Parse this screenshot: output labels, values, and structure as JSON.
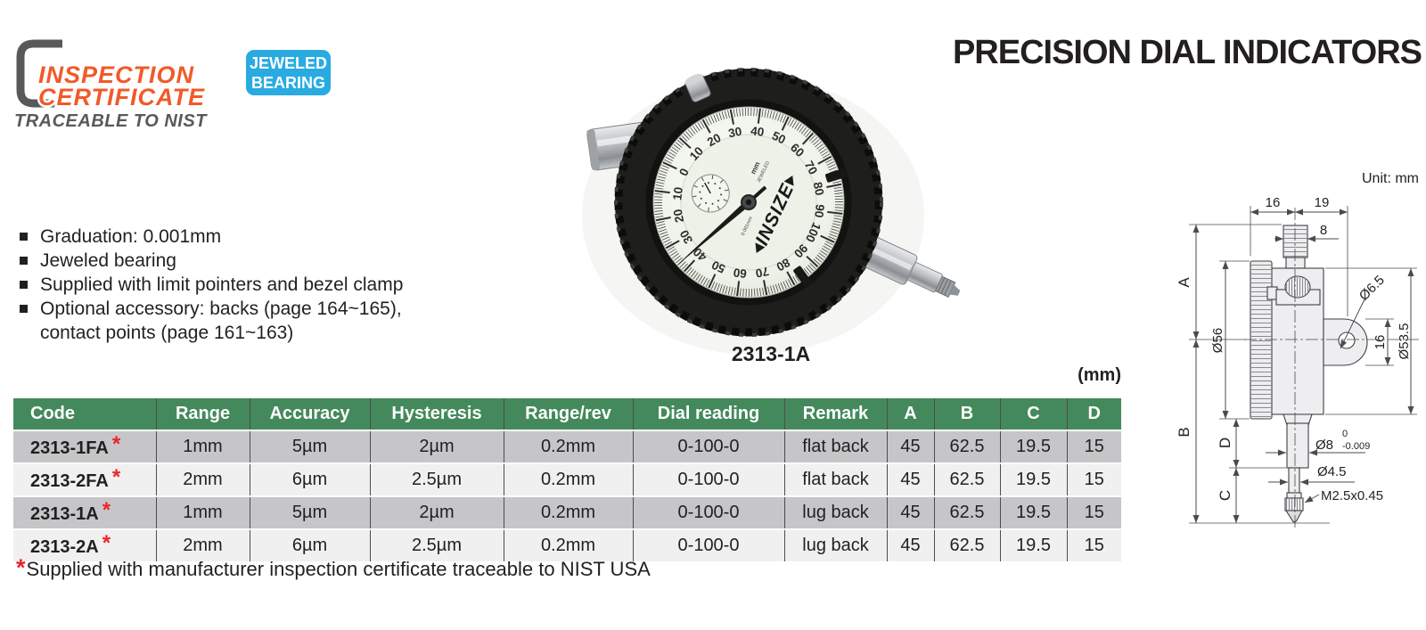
{
  "branding": {
    "inspection_line1": "INSPECTION",
    "inspection_line2": "CERTIFICATE",
    "traceable": "TRACEABLE TO NIST",
    "badge_line1": "JEWELED",
    "badge_line2": "BEARING"
  },
  "header": {
    "title": "PRECISION DIAL INDICATORS"
  },
  "features": {
    "items": [
      "Graduation: 0.001mm",
      "Jeweled bearing",
      "Supplied with limit pointers and bezel clamp",
      "Optional accessory: backs (page 164~165), contact points (page 161~163)"
    ]
  },
  "photo": {
    "caption": "2313-1A",
    "brand": "INSIZE",
    "dial_unit": "mm",
    "dial_sub": "JEWELED",
    "dial_grad": "0.001mm",
    "dial_numbers": [
      "0",
      "10",
      "20",
      "30",
      "40",
      "50",
      "60",
      "70",
      "80",
      "90",
      "100",
      "90",
      "80",
      "70",
      "60",
      "50",
      "40",
      "30",
      "20",
      "10"
    ]
  },
  "drawing": {
    "unit": "Unit: mm",
    "dims": {
      "top_left": "16",
      "top_right": "19",
      "stem_top": "8",
      "a": "A",
      "b": "B",
      "c": "C",
      "d": "D",
      "dial_od": "Ø56",
      "lug_hole": "Ø6.5",
      "lug_width": "16",
      "body_od": "Ø53.5",
      "stem": "Ø8",
      "stem_tol_top": "0",
      "stem_tol_bottom": "-0.009",
      "spindle": "Ø4.5",
      "thread": "M2.5x0.45"
    }
  },
  "table": {
    "unit_note": "(mm)",
    "columns": [
      "Code",
      "Range",
      "Accuracy",
      "Hysteresis",
      "Range/rev",
      "Dial reading",
      "Remark",
      "A",
      "B",
      "C",
      "D"
    ],
    "rows": [
      {
        "code": "2313-1FA",
        "star": "*",
        "values": [
          "1mm",
          "5µm",
          "2µm",
          "0.2mm",
          "0-100-0",
          "flat back",
          "45",
          "62.5",
          "19.5",
          "15"
        ]
      },
      {
        "code": "2313-2FA",
        "star": "*",
        "values": [
          "2mm",
          "6µm",
          "2.5µm",
          "0.2mm",
          "0-100-0",
          "flat back",
          "45",
          "62.5",
          "19.5",
          "15"
        ]
      },
      {
        "code": "2313-1A",
        "star": "*",
        "values": [
          "1mm",
          "5µm",
          "2µm",
          "0.2mm",
          "0-100-0",
          "lug back",
          "45",
          "62.5",
          "19.5",
          "15"
        ]
      },
      {
        "code": "2313-2A",
        "star": "*",
        "values": [
          "2mm",
          "6µm",
          "2.5µm",
          "0.2mm",
          "0-100-0",
          "lug back",
          "45",
          "62.5",
          "19.5",
          "15"
        ]
      }
    ]
  },
  "footnote": {
    "star": "*",
    "text": "Supplied with manufacturer inspection certificate traceable to NIST USA"
  },
  "colors": {
    "table_header_green": "#44895c",
    "row_dark": "#c6c6c8",
    "row_light": "#f0f0f1",
    "badge_blue": "#29abe2",
    "logo_orange": "#f15a29",
    "asterisk_red": "#e8262a",
    "ink": "#231f20"
  }
}
